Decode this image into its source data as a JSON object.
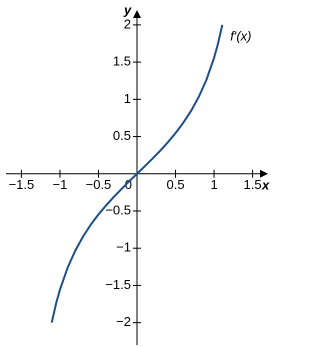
{
  "chart_data": {
    "type": "line",
    "x_label": "x",
    "y_label": "y",
    "x": [
      -1.107,
      -1.05,
      -1.0,
      -0.9,
      -0.8,
      -0.7,
      -0.6,
      -0.5,
      -0.4,
      -0.3,
      -0.2,
      -0.1,
      0,
      0.1,
      0.2,
      0.3,
      0.4,
      0.5,
      0.6,
      0.7,
      0.8,
      0.9,
      1.0,
      1.05,
      1.107
    ],
    "series": [
      {
        "name": "f′(x)",
        "color": "#1d4f86",
        "values": [
          -2.0,
          -1.743,
          -1.557,
          -1.26,
          -1.03,
          -0.842,
          -0.684,
          -0.546,
          -0.423,
          -0.309,
          -0.203,
          -0.1,
          0,
          0.1,
          0.203,
          0.309,
          0.423,
          0.546,
          0.684,
          0.842,
          1.03,
          1.26,
          1.557,
          1.743,
          2.0
        ]
      }
    ],
    "xlim": [
      -1.7,
      1.7
    ],
    "ylim": [
      -2.3,
      2.2
    ],
    "xticks": [
      {
        "value": -1.5,
        "label": "−1.5"
      },
      {
        "value": -1,
        "label": "−1"
      },
      {
        "value": -0.5,
        "label": "−0.5"
      },
      0,
      0.5,
      1,
      1.5
    ],
    "yticks": [
      {
        "value": -2,
        "label": "−2"
      },
      {
        "value": -1.5,
        "label": "−1.5"
      },
      {
        "value": -1,
        "label": "−1"
      },
      {
        "value": -0.5,
        "label": "−0.5"
      },
      0.5,
      1,
      1.5,
      2
    ],
    "grid": false
  }
}
